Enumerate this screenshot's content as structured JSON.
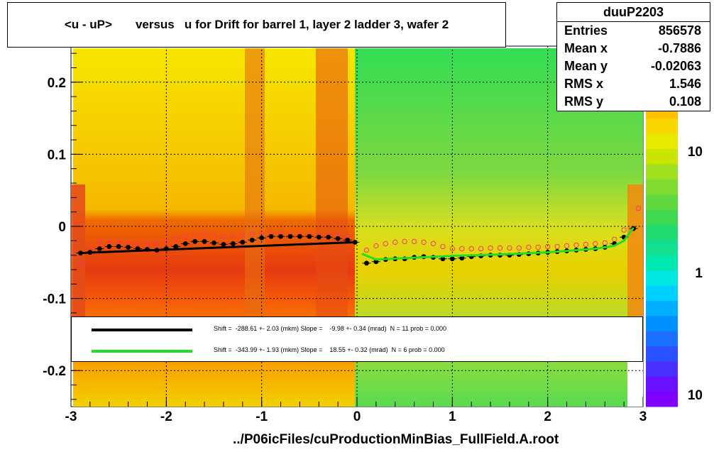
{
  "title": "<u - uP>       versus   u for Drift for barrel 1, layer 2 ladder 3, wafer 2",
  "stats": {
    "name": "duuP2203",
    "rows": [
      {
        "label": "Entries",
        "value": "856578"
      },
      {
        "label": "Mean x",
        "value": "-0.7886"
      },
      {
        "label": "Mean y",
        "value": "-0.02063"
      },
      {
        "label": "RMS x",
        "value": "1.546"
      },
      {
        "label": "RMS y",
        "value": "0.108"
      }
    ]
  },
  "legend": {
    "rows": [
      {
        "color": "#000000",
        "text": "Shift =  -288.61 +- 2.03 (mkm) Slope =    -9.98 +- 0.34 (mrad)  N = 11 prob = 0.000"
      },
      {
        "color": "#22dd22",
        "text": "Shift =  -343.99 +- 1.93 (mkm) Slope =    18.55 +- 0.32 (mrad)  N = 6 prob = 0.000"
      }
    ]
  },
  "footer": "../P06icFiles/cuProductionMinBias_FullField.A.root",
  "colors": {
    "black_fit": "#000000",
    "green_fit": "#22dd22",
    "open_markers": "#ff3366"
  },
  "chart_data": {
    "type": "heatmap",
    "xlim": [
      -3,
      3
    ],
    "ylim": [
      -0.25,
      0.25
    ],
    "x_ticks": [
      "-3",
      "-2",
      "-1",
      "0",
      "1",
      "2",
      "3"
    ],
    "y_ticks": [
      "-0.2",
      "-0.1",
      "0",
      "0.1",
      "0.2"
    ],
    "z_scale": "log",
    "z_ticks": [
      "10",
      "1",
      "10"
    ],
    "grid": true,
    "profile_black": {
      "x": [
        -2.9,
        -2.8,
        -2.7,
        -2.6,
        -2.5,
        -2.4,
        -2.3,
        -2.2,
        -2.1,
        -2.0,
        -1.9,
        -1.8,
        -1.7,
        -1.6,
        -1.5,
        -1.4,
        -1.3,
        -1.2,
        -1.1,
        -1.0,
        -0.9,
        -0.8,
        -0.7,
        -0.6,
        -0.5,
        -0.4,
        -0.3,
        -0.2,
        -0.1,
        -0.02,
        0.1,
        0.2,
        0.3,
        0.4,
        0.5,
        0.6,
        0.7,
        0.8,
        0.9,
        1.0,
        1.1,
        1.2,
        1.3,
        1.4,
        1.5,
        1.6,
        1.7,
        1.8,
        1.9,
        2.0,
        2.1,
        2.2,
        2.3,
        2.4,
        2.5,
        2.6,
        2.7,
        2.8,
        2.9
      ],
      "y": [
        -0.037,
        -0.036,
        -0.031,
        -0.028,
        -0.028,
        -0.029,
        -0.031,
        -0.032,
        -0.033,
        -0.031,
        -0.028,
        -0.024,
        -0.021,
        -0.021,
        -0.023,
        -0.025,
        -0.024,
        -0.022,
        -0.019,
        -0.016,
        -0.014,
        -0.014,
        -0.014,
        -0.014,
        -0.014,
        -0.015,
        -0.015,
        -0.017,
        -0.019,
        -0.022,
        -0.051,
        -0.049,
        -0.046,
        -0.045,
        -0.045,
        -0.043,
        -0.042,
        -0.043,
        -0.045,
        -0.045,
        -0.044,
        -0.042,
        -0.041,
        -0.04,
        -0.04,
        -0.04,
        -0.039,
        -0.038,
        -0.037,
        -0.036,
        -0.035,
        -0.034,
        -0.033,
        -0.032,
        -0.031,
        -0.029,
        -0.024,
        -0.015,
        -0.003
      ]
    },
    "profile_open": {
      "x": [
        -2.9,
        -2.8,
        -2.7,
        -2.6,
        -2.5,
        -2.4,
        -2.3,
        -2.2,
        -2.1,
        -2.0,
        -1.9,
        -1.8,
        -1.7,
        -1.6,
        -1.5,
        -1.4,
        -1.3,
        -1.2,
        -1.1,
        -1.0,
        -0.9,
        -0.8,
        -0.7,
        -0.6,
        -0.5,
        -0.4,
        -0.3,
        -0.2,
        -0.1,
        0.1,
        0.2,
        0.3,
        0.4,
        0.5,
        0.6,
        0.7,
        0.8,
        0.9,
        1.0,
        1.1,
        1.2,
        1.3,
        1.4,
        1.5,
        1.6,
        1.7,
        1.8,
        1.9,
        2.0,
        2.1,
        2.2,
        2.3,
        2.4,
        2.5,
        2.6,
        2.7,
        2.8,
        2.95
      ],
      "y": [
        -0.052,
        -0.03,
        -0.022,
        -0.021,
        -0.022,
        -0.023,
        -0.024,
        -0.025,
        -0.024,
        -0.021,
        -0.018,
        -0.014,
        -0.011,
        -0.01,
        -0.012,
        -0.014,
        -0.013,
        -0.012,
        -0.011,
        -0.01,
        -0.01,
        -0.01,
        -0.01,
        -0.011,
        -0.011,
        -0.012,
        -0.012,
        -0.013,
        -0.014,
        -0.033,
        -0.027,
        -0.024,
        -0.022,
        -0.021,
        -0.021,
        -0.022,
        -0.024,
        -0.028,
        -0.031,
        -0.031,
        -0.031,
        -0.031,
        -0.03,
        -0.03,
        -0.03,
        -0.03,
        -0.029,
        -0.029,
        -0.028,
        -0.028,
        -0.027,
        -0.026,
        -0.025,
        -0.024,
        -0.023,
        -0.018,
        -0.005,
        0.025
      ]
    },
    "fit_black": {
      "x": [
        -2.9,
        -0.02
      ],
      "y": [
        -0.037,
        -0.022
      ]
    },
    "fit_green": {
      "x": [
        0.05,
        0.2,
        0.5,
        1.0,
        1.5,
        2.0,
        2.5,
        2.7,
        2.8,
        2.9
      ],
      "y": [
        -0.038,
        -0.046,
        -0.044,
        -0.041,
        -0.039,
        -0.036,
        -0.031,
        -0.027,
        -0.02,
        -0.002
      ]
    }
  }
}
